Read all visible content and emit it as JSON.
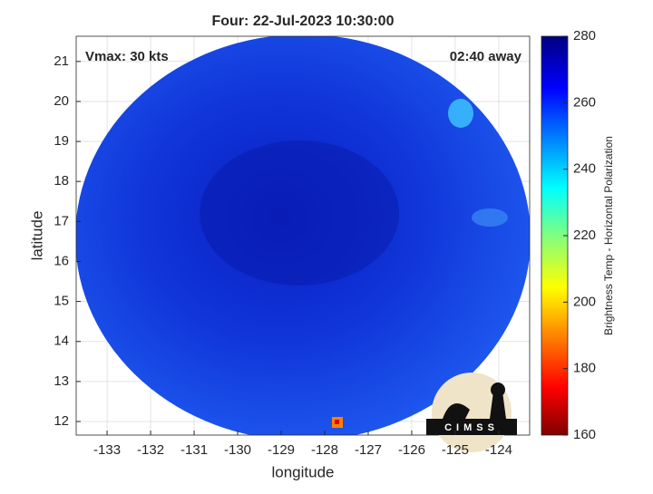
{
  "map": {
    "title": "Four: 22-Jul-2023 10:30:00",
    "annotations": {
      "left": "Vmax: 30 kts",
      "right": "02:40 away"
    },
    "xlabel": "longitude",
    "ylabel": "latitude",
    "xlim": [
      -133.71,
      -123.29
    ],
    "ylim": [
      11.66,
      21.63
    ],
    "xticks": [
      -133,
      -132,
      -131,
      -130,
      -129,
      -128,
      -127,
      -126,
      -125,
      -124
    ],
    "yticks": [
      12,
      13,
      14,
      15,
      16,
      17,
      18,
      19,
      20,
      21
    ],
    "grid": true,
    "colorbar": {
      "label": "Brightness Temp - Horizontal Polarization",
      "lim": [
        160,
        280
      ],
      "ticks": [
        160,
        180,
        200,
        220,
        240,
        260,
        280
      ]
    },
    "logo": {
      "text": "CIMSS"
    }
  }
}
